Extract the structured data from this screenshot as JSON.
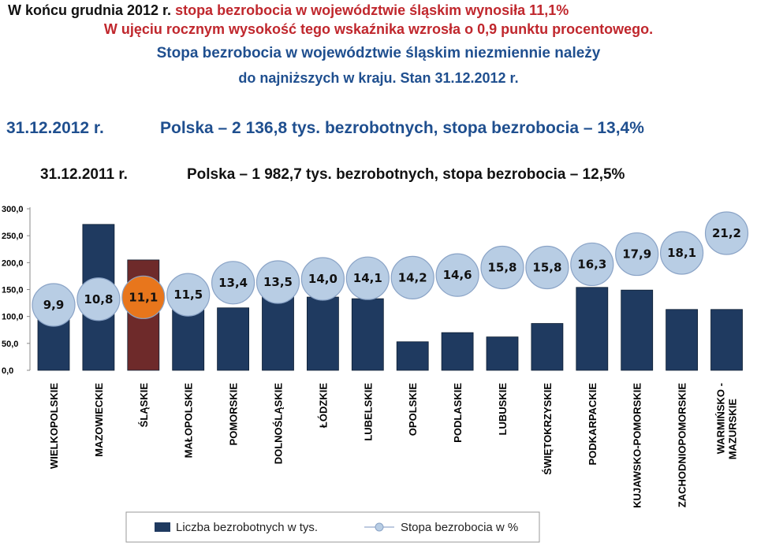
{
  "header": {
    "line1_prefix": "W końcu grudnia 2012 r.",
    "line1_rest": " stopa bezrobocia w województwie śląskim wynosiła 11,1%",
    "line2": "W ujęciu rocznym wysokość tego wskaźnika wzrosła o 0,9 punktu procentowego.",
    "line3": "Stopa bezrobocia w województwie śląskim niezmiennie należy",
    "line4": "do najniższych w kraju. Stan 31.12.2012 r.",
    "summary_2012": {
      "date": "31.12.2012 r.",
      "text": "Polska – 2 136,8 tys. bezrobotnych,  stopa bezrobocia – 13,4%"
    },
    "summary_2011": {
      "date": "31.12.2011 r.",
      "text": "Polska – 1 982,7 tys. bezrobotnych,  stopa bezrobocia – 12,5%"
    }
  },
  "chart_data": {
    "type": "bar",
    "categories": [
      "WIELKOPOLSKIE",
      "MAZOWIECKIE",
      "ŚLĄSKIE",
      "MAŁOPOLSKIE",
      "POMORSKIE",
      "DOLNOŚLĄSKIE",
      "ŁÓDZKIE",
      "LUBELSKIE",
      "OPOLSKIE",
      "PODLASKIE",
      "LUBUSKIE",
      "ŚWIĘTOKRZYSKIE",
      "PODKARPACKIE",
      "KUJAWSKO-POMORSKIE",
      "ZACHODNIOPOMORSKIE",
      "WARMIŃSKO - MAZURSKIE"
    ],
    "series": [
      {
        "name": "Liczba bezrobotnych w tys.",
        "values": [
          140.0,
          271.0,
          205.0,
          155.0,
          116.0,
          151.0,
          136.0,
          133.0,
          53.0,
          70.0,
          62.0,
          87.0,
          154.0,
          149.0,
          113.0,
          113.0
        ]
      },
      {
        "name": "Stopa bezrobocia w %",
        "values": [
          9.9,
          10.8,
          11.1,
          11.5,
          13.4,
          13.5,
          14.0,
          14.1,
          14.2,
          14.6,
          15.8,
          15.8,
          16.3,
          17.9,
          18.1,
          21.2
        ]
      }
    ],
    "rate_labels": [
      "9,9",
      "10,8",
      "11,1",
      "11,5",
      "13,4",
      "13,5",
      "14,0",
      "14,1",
      "14,2",
      "14,6",
      "15,8",
      "15,8",
      "16,3",
      "17,9",
      "18,1",
      "21,2"
    ],
    "y_ticks": [
      "0,0",
      "50,0",
      "100,0",
      "150,0",
      "200,0",
      "250,0",
      "300,0"
    ],
    "ylim": [
      0,
      300
    ],
    "highlight_index": 2,
    "colors": {
      "bar": "#1f3a60",
      "bar_highlight": "#6e2a2a",
      "bubble": "#b8cde4",
      "bubble_highlight": "#e8761c",
      "bubble_stroke": "#8aa3c6"
    },
    "legend_position": "bottom"
  }
}
